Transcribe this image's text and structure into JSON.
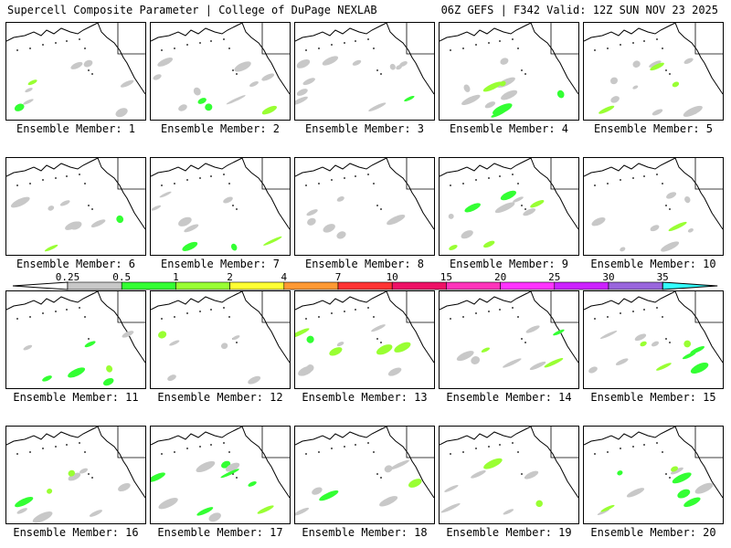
{
  "header": {
    "left": "Supercell Composite Parameter | College of DuPage NEXLAB",
    "right": "06Z GEFS | F342 Valid: 12Z SUN NOV 23 2025"
  },
  "member_label_prefix": "Ensemble Member:",
  "members": [
    1,
    2,
    3,
    4,
    5,
    6,
    7,
    8,
    9,
    10,
    11,
    12,
    13,
    14,
    15,
    16,
    17,
    18,
    19,
    20
  ],
  "colorbar": {
    "ticks": [
      "0.25",
      "0.5",
      "1",
      "2",
      "4",
      "7",
      "10",
      "15",
      "20",
      "25",
      "30",
      "35"
    ],
    "colors": [
      "#c8c8c8",
      "#33ff33",
      "#99ff33",
      "#ffff33",
      "#ff9933",
      "#ff3333",
      "#ee1166",
      "#ff33bb",
      "#ff33ff",
      "#cc22ff",
      "#9966dd",
      "#33ffff"
    ]
  }
}
